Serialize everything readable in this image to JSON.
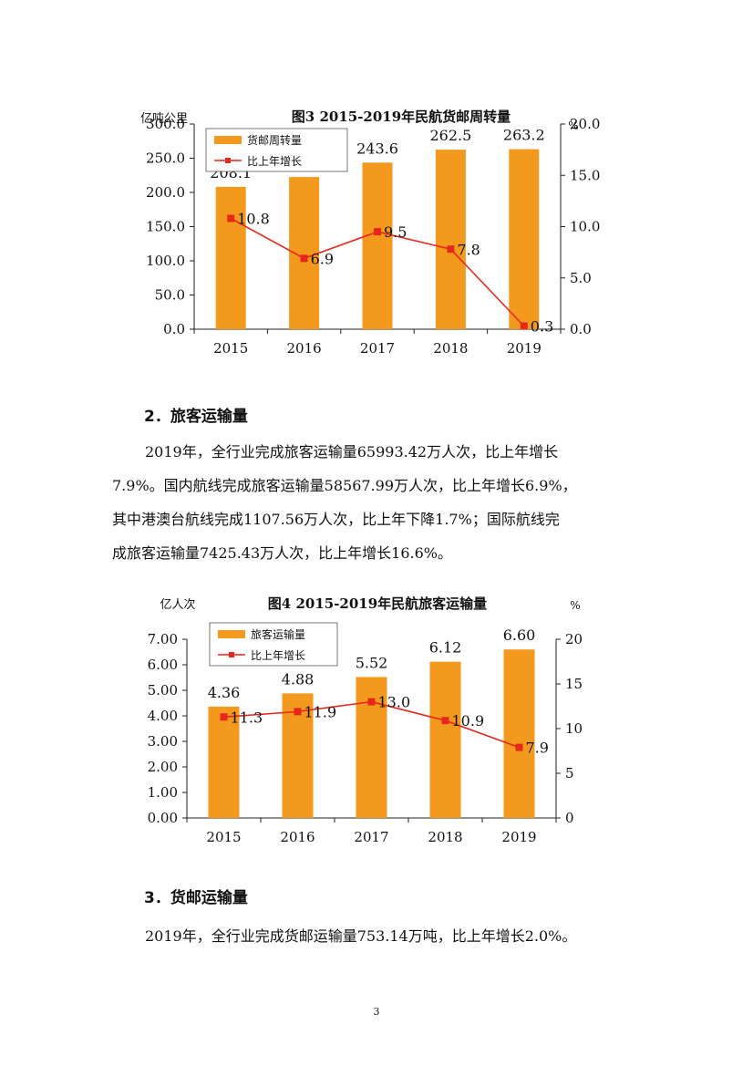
{
  "colors": {
    "bar": "#f39a1e",
    "line": "#e8271c",
    "axis": "#222222"
  },
  "chart_data": [
    {
      "type": "bar",
      "title": "图3 2015-2019年民航货邮周转量",
      "ylabel": "亿吨公里",
      "y2label": "%",
      "categories": [
        "2015",
        "2016",
        "2017",
        "2018",
        "2019"
      ],
      "ylim": [
        0,
        300
      ],
      "yticks": [
        "0.0",
        "50.0",
        "100.0",
        "150.0",
        "200.0",
        "250.0",
        "300.0"
      ],
      "y2lim": [
        0,
        20
      ],
      "y2ticks": [
        "0.0",
        "5.0",
        "10.0",
        "15.0",
        "20.0"
      ],
      "series": [
        {
          "name": "货邮周转量",
          "type": "bar",
          "axis": "left",
          "values": [
            208.1,
            222.5,
            243.6,
            262.5,
            263.2
          ],
          "labels": [
            "208.1",
            "222.5",
            "243.6",
            "262.5",
            "263.2"
          ]
        },
        {
          "name": "比上年增长",
          "type": "line",
          "axis": "right",
          "values": [
            10.8,
            6.9,
            9.5,
            7.8,
            0.3
          ],
          "labels": [
            "10.8",
            "6.9",
            "9.5",
            "7.8",
            "0.3"
          ]
        }
      ],
      "legend": "top-left",
      "grid": false
    },
    {
      "type": "bar",
      "title": "图4 2015-2019年民航旅客运输量",
      "ylabel": "亿人次",
      "y2label": "%",
      "categories": [
        "2015",
        "2016",
        "2017",
        "2018",
        "2019"
      ],
      "ylim": [
        0,
        7
      ],
      "yticks": [
        "0.00",
        "1.00",
        "2.00",
        "3.00",
        "4.00",
        "5.00",
        "6.00",
        "7.00"
      ],
      "y2lim": [
        0,
        20
      ],
      "y2ticks": [
        "0",
        "5",
        "10",
        "15",
        "20"
      ],
      "series": [
        {
          "name": "旅客运输量",
          "type": "bar",
          "axis": "left",
          "values": [
            4.36,
            4.88,
            5.52,
            6.12,
            6.6
          ],
          "labels": [
            "4.36",
            "4.88",
            "5.52",
            "6.12",
            "6.60"
          ]
        },
        {
          "name": "比上年增长",
          "type": "line",
          "axis": "right",
          "values": [
            11.3,
            11.9,
            13.0,
            10.9,
            7.9
          ],
          "labels": [
            "11.3",
            "11.9",
            "13.0",
            "10.9",
            "7.9"
          ]
        }
      ],
      "legend": "top-left",
      "grid": false
    }
  ],
  "section2": {
    "heading": "2．旅客运输量",
    "lines": [
      "2019年，全行业完成旅客运输量65993.42万人次，比上年增长",
      "7.9%。国内航线完成旅客运输量58567.99万人次，比上年增长6.9%，",
      "其中港澳台航线完成1107.56万人次，比上年下降1.7%；国际航线完",
      "成旅客运输量7425.43万人次，比上年增长16.6%。"
    ]
  },
  "section3": {
    "heading": "3．货邮运输量",
    "text": "2019年，全行业完成货邮运输量753.14万吨，比上年增长2.0%。"
  },
  "page_number": "3"
}
